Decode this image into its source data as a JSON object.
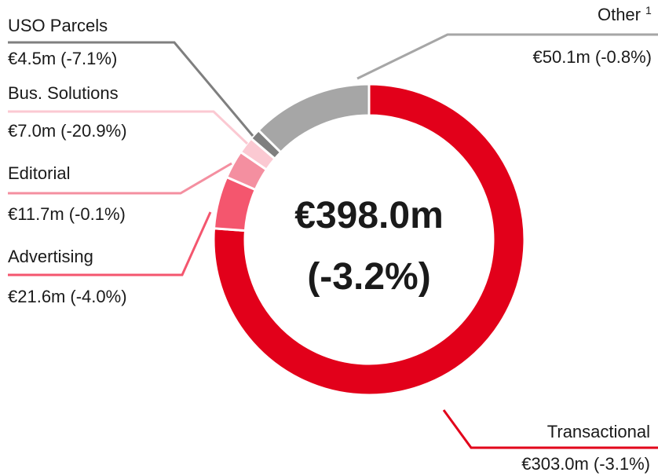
{
  "chart_data": {
    "type": "donut",
    "categories": [
      "Transactional",
      "Advertising",
      "Editorial",
      "Bus. Solutions",
      "USO Parcels",
      "Other"
    ],
    "label_notes": [
      null,
      null,
      null,
      null,
      null,
      "1"
    ],
    "values": [
      303.0,
      21.6,
      11.7,
      7.0,
      4.5,
      50.1
    ],
    "value_labels": [
      "€303.0m",
      "€21.6m",
      "€11.7m",
      "€7.0m",
      "€4.5m",
      "€50.1m"
    ],
    "changes": [
      "(-3.1%)",
      "(-4.0%)",
      "(-0.1%)",
      "(-20.9%)",
      "(-7.1%)",
      "(-0.8%)"
    ],
    "colors": [
      "#e2001a",
      "#f4566e",
      "#f48fa0",
      "#fbc9d2",
      "#7f7f7f",
      "#a6a6a6"
    ],
    "center_label": "€398.0m",
    "center_sublabel": "(-3.2%)"
  }
}
